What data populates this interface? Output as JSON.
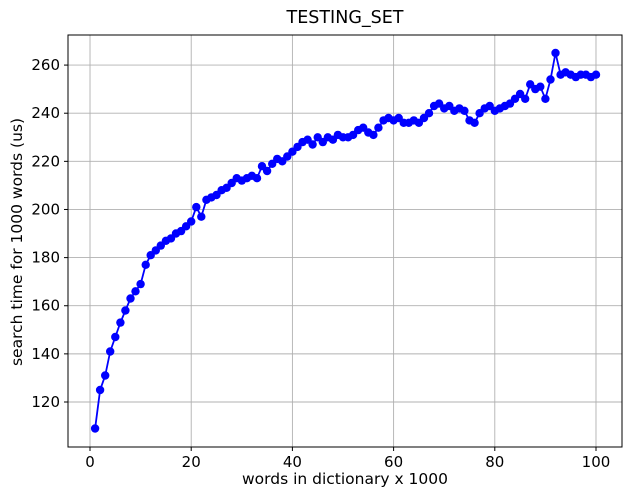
{
  "chart_data": {
    "type": "line",
    "title": "TESTING_SET",
    "xlabel": "words in dictionary x 1000",
    "ylabel": "search time for 1000 words (us)",
    "grid": true,
    "legend": "none",
    "x_ticks": [
      0,
      20,
      40,
      60,
      80,
      100
    ],
    "y_ticks": [
      120,
      140,
      160,
      180,
      200,
      220,
      240,
      260
    ],
    "xlim": [
      -4.35,
      105.14
    ],
    "ylim": [
      101.3,
      272.5
    ],
    "colors": {
      "line": "#0000ff",
      "marker": "#0000ff",
      "grid": "#b0b0b0",
      "spine": "#000000",
      "text": "#000000",
      "background": "#ffffff"
    },
    "series": [
      {
        "name": "search time",
        "marker": "circle",
        "x": [
          1,
          2,
          3,
          4,
          5,
          6,
          7,
          8,
          9,
          10,
          11,
          12,
          13,
          14,
          15,
          16,
          17,
          18,
          19,
          20,
          21,
          22,
          23,
          24,
          25,
          26,
          27,
          28,
          29,
          30,
          31,
          32,
          33,
          34,
          35,
          36,
          37,
          38,
          39,
          40,
          41,
          42,
          43,
          44,
          45,
          46,
          47,
          48,
          49,
          50,
          51,
          52,
          53,
          54,
          55,
          56,
          57,
          58,
          59,
          60,
          61,
          62,
          63,
          64,
          65,
          66,
          67,
          68,
          69,
          70,
          71,
          72,
          73,
          74,
          75,
          76,
          77,
          78,
          79,
          80,
          81,
          82,
          83,
          84,
          85,
          86,
          87,
          88,
          89,
          90,
          91,
          92,
          93,
          94,
          95,
          96,
          97,
          98,
          99,
          100
        ],
        "y": [
          109,
          125,
          131,
          141,
          147,
          153,
          158,
          163,
          166,
          169,
          177,
          181,
          183,
          185,
          187,
          188,
          190,
          191,
          193,
          195,
          201,
          197,
          204,
          205,
          206,
          208,
          209,
          211,
          213,
          212,
          213,
          214,
          213,
          218,
          216,
          219,
          221,
          220,
          222,
          224,
          226,
          228,
          229,
          227,
          230,
          228,
          230,
          229,
          231,
          230,
          230,
          231,
          233,
          234,
          232,
          231,
          234,
          237,
          238,
          237,
          238,
          236,
          236,
          237,
          236,
          238,
          240,
          243,
          244,
          242,
          243,
          241,
          242,
          241,
          237,
          236,
          240,
          242,
          243,
          241,
          242,
          243,
          244,
          246,
          248,
          246,
          252,
          250,
          251,
          246,
          254,
          265,
          256,
          257,
          256,
          255,
          256,
          256,
          255,
          256
        ]
      }
    ]
  }
}
